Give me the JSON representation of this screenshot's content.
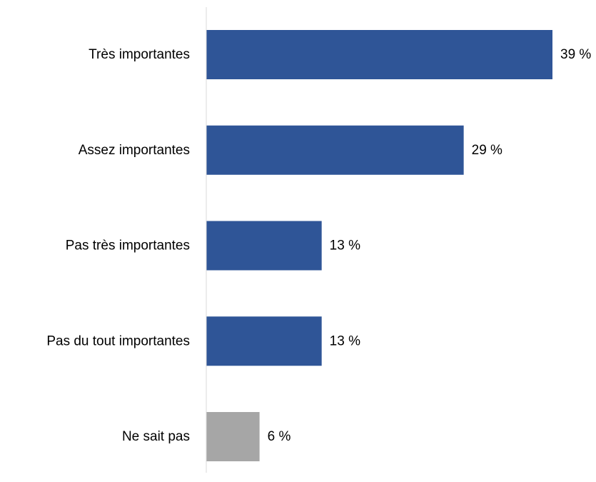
{
  "chart_data": {
    "type": "bar",
    "orientation": "horizontal",
    "categories": [
      "Très importantes",
      "Assez importantes",
      "Pas très importantes",
      "Pas du tout importantes",
      "Ne sait pas"
    ],
    "values": [
      39,
      29,
      13,
      13,
      6
    ],
    "value_labels": [
      "39 %",
      "29 %",
      "13 %",
      "13 %",
      "6 %"
    ],
    "bar_colors": [
      "#2f5597",
      "#2f5597",
      "#2f5597",
      "#2f5597",
      "#a6a6a6"
    ],
    "axis_line_color": "#d9d9d9",
    "xlim": [
      0,
      39
    ],
    "grid": false,
    "legend": "none"
  }
}
